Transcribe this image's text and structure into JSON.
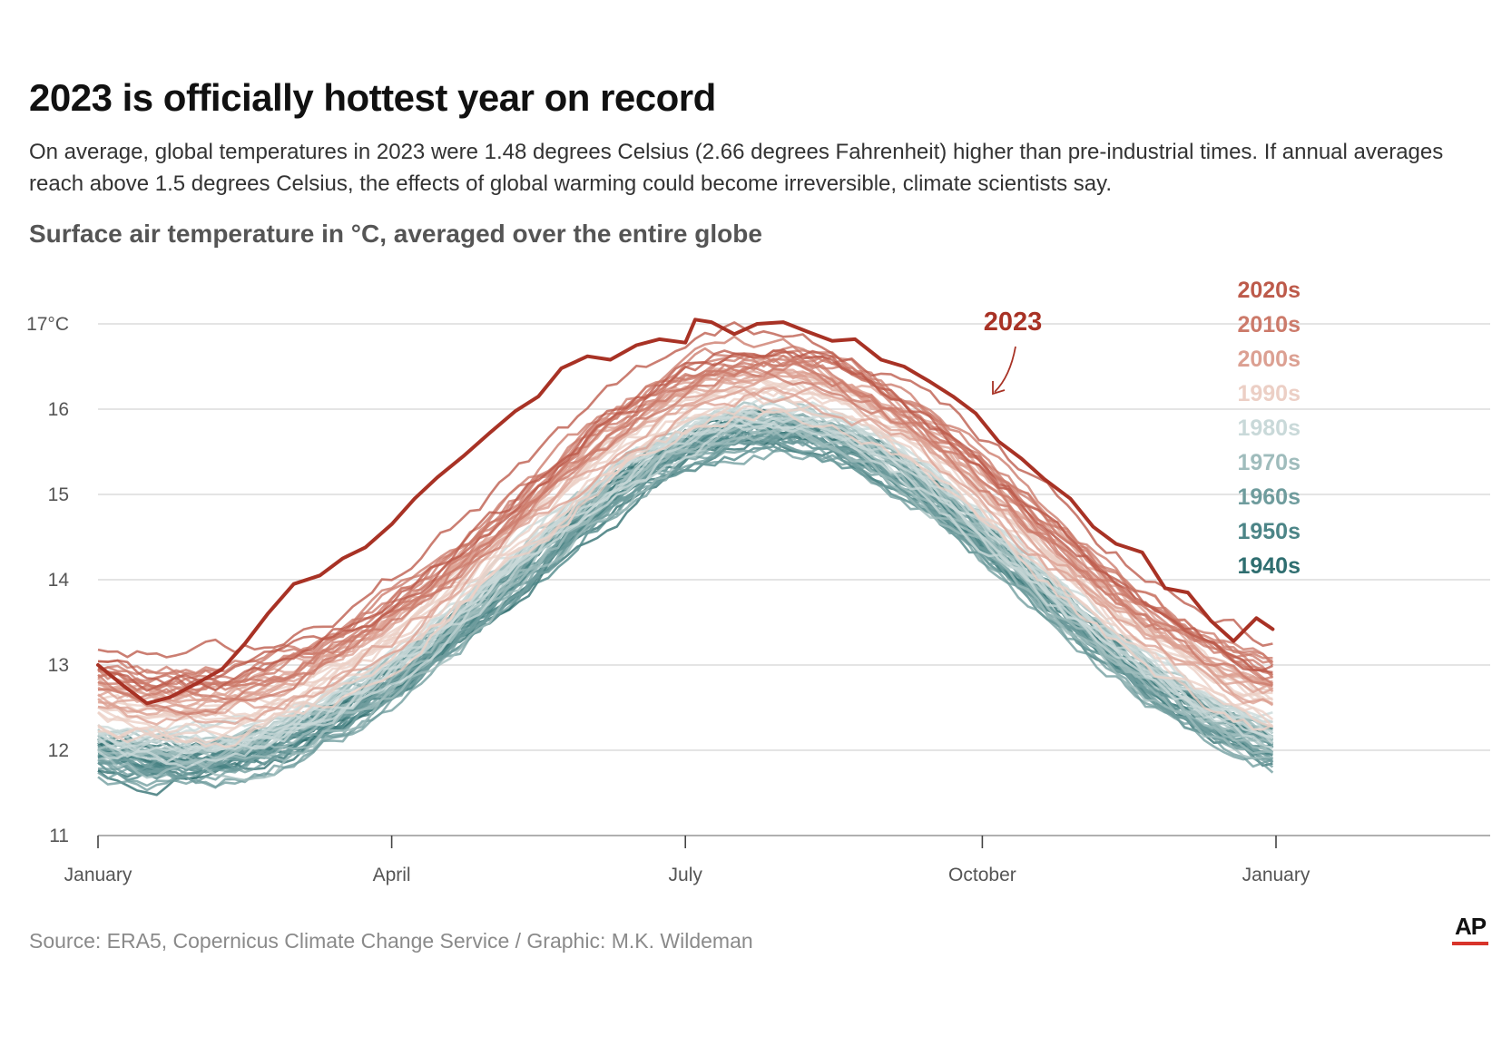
{
  "header": {
    "title": "2023 is officially hottest year on record",
    "subtitle": "On average, global temperatures in 2023 were 1.48 degrees Celsius (2.66 degrees Fahrenheit) higher than pre-industrial times. If annual averages reach above 1.5 degrees Celsius, the effects of global warming could become irreversible, climate scientists say.",
    "chart_heading": "Surface air temperature in °C, averaged over the entire globe"
  },
  "footer": {
    "source": "Source: ERA5, Copernicus Climate Change Service / Graphic: M.K. Wildeman",
    "logo": "AP"
  },
  "colors": {
    "c2023": "#a83225",
    "c2020s": "#bd5a4a",
    "c2010s": "#cc7a6a",
    "c2000s": "#dca092",
    "c1990s": "#eccfc5",
    "c1980s": "#c9d9d9",
    "c1970s": "#9fbcbc",
    "c1960s": "#6f9c9d",
    "c1950s": "#4c8587",
    "c1940s": "#2f6e70",
    "grid": "#d4d4d4",
    "logo_bar": "#d8342a"
  },
  "chart_data": {
    "type": "line",
    "title": "Surface air temperature in °C, averaged over the entire globe",
    "xlabel": "",
    "ylabel": "",
    "x_ticks": [
      "January",
      "April",
      "July",
      "October",
      "January"
    ],
    "x_tick_days": [
      0,
      90,
      180,
      271,
      361
    ],
    "xlim": [
      0,
      425
    ],
    "ylim": [
      11,
      17
    ],
    "y_ticks": [
      11,
      12,
      13,
      14,
      15,
      16,
      17
    ],
    "y_tick_labels": [
      "11",
      "12",
      "13",
      "14",
      "15",
      "16",
      "17°C"
    ],
    "grid": true,
    "legend_position": "right",
    "legend": [
      "2020s",
      "2010s",
      "2000s",
      "1990s",
      "1980s",
      "1970s",
      "1960s",
      "1950s",
      "1940s"
    ],
    "decades": [
      {
        "label": "1940s",
        "color": "#2f6e70",
        "jan": 11.75,
        "jul": 15.55
      },
      {
        "label": "1950s",
        "color": "#4c8587",
        "jan": 11.78,
        "jul": 15.58
      },
      {
        "label": "1960s",
        "color": "#6f9c9d",
        "jan": 11.72,
        "jul": 15.55
      },
      {
        "label": "1970s",
        "color": "#9fbcbc",
        "jan": 11.82,
        "jul": 15.65
      },
      {
        "label": "1980s",
        "color": "#c9d9d9",
        "jan": 12.02,
        "jul": 15.82
      },
      {
        "label": "1990s",
        "color": "#eccfc5",
        "jan": 12.2,
        "jul": 15.98
      },
      {
        "label": "2000s",
        "color": "#dca092",
        "jan": 12.42,
        "jul": 16.18
      },
      {
        "label": "2010s",
        "color": "#cc7a6a",
        "jan": 12.68,
        "jul": 16.42
      },
      {
        "label": "2020s",
        "color": "#bd5a4a",
        "jan": 12.88,
        "jul": 16.6
      }
    ],
    "series_2023": {
      "name": "2023",
      "day": [
        0,
        8,
        15,
        22,
        30,
        38,
        45,
        52,
        60,
        68,
        75,
        82,
        90,
        97,
        104,
        112,
        120,
        128,
        135,
        142,
        150,
        157,
        165,
        172,
        180,
        183,
        188,
        195,
        202,
        210,
        218,
        225,
        232,
        240,
        247,
        255,
        262,
        269,
        276,
        283,
        290,
        298,
        305,
        312,
        320,
        327,
        334,
        341,
        348,
        355,
        360
      ],
      "values": [
        13.0,
        12.75,
        12.55,
        12.62,
        12.78,
        12.95,
        13.25,
        13.6,
        13.95,
        14.05,
        14.25,
        14.38,
        14.65,
        14.95,
        15.2,
        15.45,
        15.72,
        15.98,
        16.15,
        16.48,
        16.62,
        16.58,
        16.75,
        16.82,
        16.78,
        17.05,
        17.02,
        16.88,
        17.0,
        17.02,
        16.9,
        16.8,
        16.82,
        16.58,
        16.5,
        16.32,
        16.15,
        15.95,
        15.62,
        15.42,
        15.18,
        14.95,
        14.62,
        14.42,
        14.32,
        13.9,
        13.85,
        13.52,
        13.28,
        13.55,
        13.42
      ]
    },
    "annotation": "2023"
  }
}
